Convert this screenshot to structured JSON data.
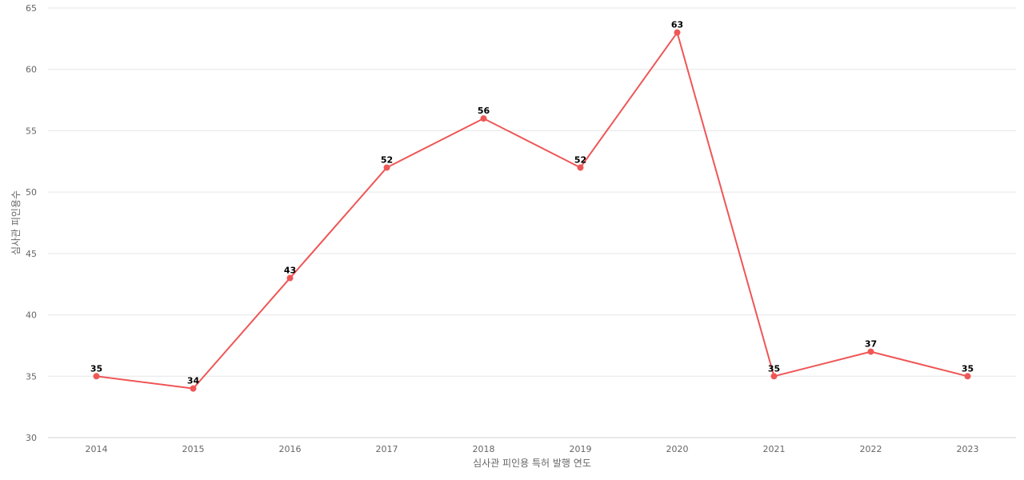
{
  "chart_data": {
    "type": "line",
    "title": "",
    "xlabel": "심사관 피인용 특허 발행 연도",
    "ylabel": "심사관 피인용수",
    "categories": [
      "2014",
      "2015",
      "2016",
      "2017",
      "2018",
      "2019",
      "2020",
      "2021",
      "2022",
      "2023"
    ],
    "series": [
      {
        "values": [
          35,
          34,
          43,
          52,
          56,
          52,
          63,
          35,
          37,
          35
        ]
      }
    ],
    "ylim": [
      30,
      65
    ],
    "yticks": [
      30,
      35,
      40,
      45,
      50,
      55,
      60,
      65
    ],
    "grid": true,
    "legend": "none",
    "colors": {
      "series": "#ef5656"
    }
  }
}
